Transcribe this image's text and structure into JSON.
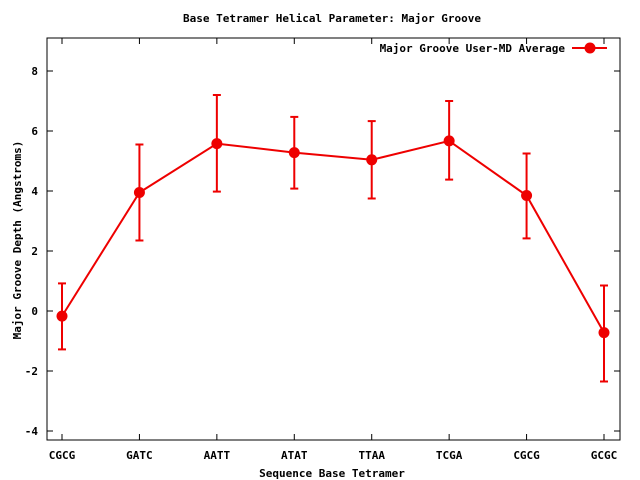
{
  "chart_data": {
    "type": "line",
    "title": "Base Tetramer Helical Parameter: Major Groove",
    "xlabel": "Sequence Base Tetramer",
    "ylabel": "Major Groove Depth (Angstroms)",
    "categories": [
      "CGCG",
      "GATC",
      "AATT",
      "ATAT",
      "TTAA",
      "TCGA",
      "CGCG",
      "GCGC"
    ],
    "ylim": [
      -4.3,
      9.1
    ],
    "yticks": [
      -4,
      -2,
      0,
      2,
      4,
      6,
      8
    ],
    "grid": false,
    "legend_position": "top-right",
    "series": [
      {
        "name": "Major Groove User-MD Average",
        "color": "#ee0000",
        "values": [
          -0.17,
          3.95,
          5.58,
          5.28,
          5.04,
          5.67,
          3.85,
          -0.72
        ],
        "error_low": [
          -1.28,
          2.35,
          3.98,
          4.08,
          3.75,
          4.38,
          2.42,
          -2.35
        ],
        "error_high": [
          0.92,
          5.55,
          7.2,
          6.47,
          6.33,
          7.0,
          5.25,
          0.85
        ]
      }
    ]
  }
}
